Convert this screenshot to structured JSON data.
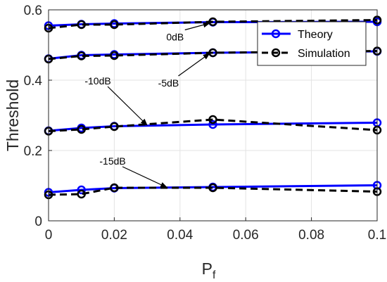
{
  "chart_data": {
    "type": "line",
    "xlabel": "P",
    "xlabel_subscript": "f",
    "ylabel": "Threshold",
    "xlim": [
      0,
      0.1
    ],
    "ylim": [
      0,
      0.6
    ],
    "xticks": [
      0,
      0.02,
      0.04,
      0.06,
      0.08,
      0.1
    ],
    "xtick_labels": [
      "0",
      "0.02",
      "0.04",
      "0.06",
      "0.08",
      "0.1"
    ],
    "yticks": [
      0,
      0.2,
      0.4,
      0.6
    ],
    "ytick_labels": [
      "0",
      "0.2",
      "0.4",
      "0.6"
    ],
    "grid": true,
    "legend_position": "top-right",
    "x": [
      0,
      0.01,
      0.02,
      0.05,
      0.1
    ],
    "legend": [
      {
        "label": "Theory",
        "color": "#0000ff",
        "style": "solid",
        "marker": "circle"
      },
      {
        "label": "Simulation",
        "color": "#000000",
        "style": "dashed",
        "marker": "circle"
      }
    ],
    "series": [
      {
        "group": "0dB",
        "kind": "Theory",
        "values": [
          0.555,
          0.559,
          0.561,
          0.565,
          0.566
        ]
      },
      {
        "group": "0dB",
        "kind": "Simulation",
        "values": [
          0.548,
          0.558,
          0.558,
          0.566,
          0.571
        ]
      },
      {
        "group": "-5dB",
        "kind": "Theory",
        "values": [
          0.461,
          0.471,
          0.473,
          0.478,
          0.482
        ]
      },
      {
        "group": "-5dB",
        "kind": "Simulation",
        "values": [
          0.46,
          0.469,
          0.47,
          0.478,
          0.483
        ]
      },
      {
        "group": "-10dB",
        "kind": "Theory",
        "values": [
          0.256,
          0.264,
          0.269,
          0.274,
          0.279
        ]
      },
      {
        "group": "-10dB",
        "kind": "Simulation",
        "values": [
          0.255,
          0.26,
          0.268,
          0.288,
          0.258
        ]
      },
      {
        "group": "-15dB",
        "kind": "Theory",
        "values": [
          0.081,
          0.088,
          0.093,
          0.096,
          0.101
        ]
      },
      {
        "group": "-15dB",
        "kind": "Simulation",
        "values": [
          0.074,
          0.076,
          0.094,
          0.094,
          0.083
        ]
      }
    ],
    "annotations": [
      {
        "text": "0dB",
        "label_x": 0.0385,
        "label_y": 0.523,
        "arrow_x": 0.049,
        "arrow_y": 0.562
      },
      {
        "text": "-5dB",
        "label_x": 0.0365,
        "label_y": 0.392,
        "arrow_x": 0.049,
        "arrow_y": 0.476
      },
      {
        "text": "-10dB",
        "label_x": 0.015,
        "label_y": 0.398,
        "arrow_x": 0.03,
        "arrow_y": 0.272
      },
      {
        "text": "-15dB",
        "label_x": 0.0195,
        "label_y": 0.17,
        "arrow_x": 0.036,
        "arrow_y": 0.095
      }
    ]
  }
}
